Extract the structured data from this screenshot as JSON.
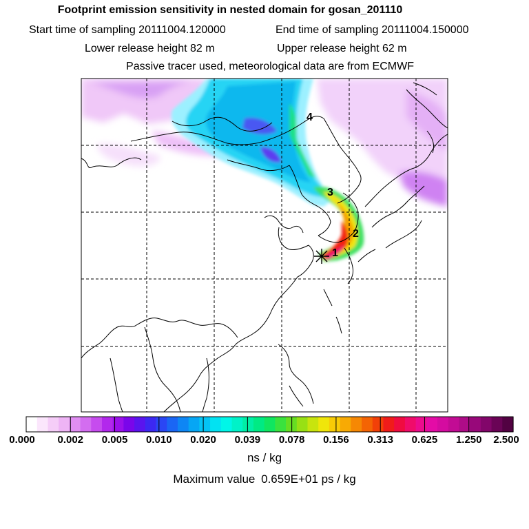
{
  "header": {
    "title": "Footprint emission sensitivity in nested domain for gosan_201110",
    "start_label": "Start time of sampling 20111004.120000",
    "end_label": "End time of sampling 20111004.150000",
    "lower_label": "Lower release height   82 m",
    "upper_label": "Upper release height   62 m",
    "tracer_label": "Passive tracer used, meteorological data are from ECMWF"
  },
  "map": {
    "markers": [
      {
        "label": "1"
      },
      {
        "label": "2"
      },
      {
        "label": "3"
      },
      {
        "label": "4"
      }
    ],
    "release_site_icon": "star-icon",
    "gridlines": "dashed",
    "coastline_color": "#000000"
  },
  "colorbar": {
    "tick_labels": [
      "0.000",
      "0.002",
      "0.005",
      "0.010",
      "0.020",
      "0.039",
      "0.078",
      "0.156",
      "0.313",
      "0.625",
      "1.250",
      "2.500"
    ],
    "colors": [
      "#ffffff",
      "#fbe6fc",
      "#f5cdf8",
      "#eeb4f5",
      "#e08ef2",
      "#d36df0",
      "#c64cee",
      "#b228ec",
      "#9a10ea",
      "#7a06ea",
      "#5a14ee",
      "#3c28f2",
      "#2a46f4",
      "#1a66f4",
      "#0e86f4",
      "#06a6f4",
      "#04c4f4",
      "#02e2f2",
      "#00f6e8",
      "#00f2c8",
      "#00eea6",
      "#00ea84",
      "#10e660",
      "#3ae23e",
      "#66de22",
      "#98e014",
      "#c8e40e",
      "#f0e60a",
      "#f8cc06",
      "#f8aa04",
      "#f68804",
      "#f46404",
      "#f24008",
      "#f01c1a",
      "#f00c40",
      "#f00c6a",
      "#ec0c8e",
      "#e40ca6",
      "#d40ca0",
      "#c20c94",
      "#ae0c88",
      "#98087a",
      "#82066a",
      "#6a0456",
      "#520242"
    ]
  },
  "units": "ns / kg",
  "max_label": "Maximum value",
  "max_value": "0.659E+01 ps / kg"
}
